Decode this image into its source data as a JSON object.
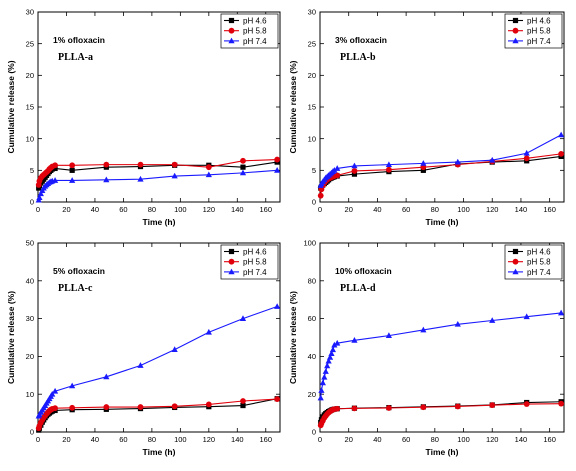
{
  "chart_data": [
    {
      "type": "line",
      "annotation": "1% ofloxacin",
      "sample_label": "PLLA-a",
      "xlabel": "Time (h)",
      "ylabel": "Cumulative release (%)",
      "xlim": [
        0,
        170
      ],
      "ylim": [
        0,
        30
      ],
      "xticks": [
        0,
        20,
        40,
        60,
        80,
        100,
        120,
        140,
        160
      ],
      "yticks": [
        0,
        5,
        10,
        15,
        20,
        25,
        30
      ],
      "legend_position": "top-right",
      "series": [
        {
          "name": "pH 4.6",
          "color": "#000000",
          "marker": "square",
          "x": [
            0.5,
            1,
            2,
            3,
            4,
            5,
            6,
            7,
            8,
            9,
            10,
            12,
            24,
            48,
            72,
            96,
            120,
            144,
            168
          ],
          "y": [
            2.2,
            2.6,
            3.0,
            3.3,
            3.6,
            3.9,
            4.2,
            4.5,
            4.8,
            5.0,
            5.2,
            5.3,
            5.0,
            5.5,
            5.6,
            5.8,
            5.8,
            5.5,
            6.3
          ]
        },
        {
          "name": "pH 5.8",
          "color": "#e0000b",
          "marker": "circle",
          "x": [
            0.5,
            1,
            2,
            3,
            4,
            5,
            6,
            7,
            8,
            9,
            10,
            12,
            24,
            48,
            72,
            96,
            120,
            144,
            168
          ],
          "y": [
            2.7,
            3.3,
            3.8,
            4.1,
            4.3,
            4.5,
            4.7,
            4.9,
            5.2,
            5.4,
            5.6,
            5.8,
            5.8,
            5.9,
            5.9,
            5.9,
            5.5,
            6.5,
            6.7
          ]
        },
        {
          "name": "pH 7.4",
          "color": "#1a1aff",
          "marker": "triangle",
          "x": [
            0.5,
            1,
            2,
            3,
            4,
            5,
            6,
            7,
            8,
            9,
            10,
            12,
            24,
            48,
            72,
            96,
            120,
            144,
            168
          ],
          "y": [
            0.3,
            0.7,
            1.3,
            1.8,
            2.2,
            2.5,
            2.7,
            2.9,
            3.1,
            3.2,
            3.3,
            3.4,
            3.4,
            3.5,
            3.6,
            4.1,
            4.3,
            4.6,
            5.0
          ]
        }
      ]
    },
    {
      "type": "line",
      "annotation": "3% ofloxacin",
      "sample_label": "PLLA-b",
      "xlabel": "Time (h)",
      "ylabel": "Cumulative release (%)",
      "xlim": [
        0,
        170
      ],
      "ylim": [
        0,
        30
      ],
      "xticks": [
        0,
        20,
        40,
        60,
        80,
        100,
        120,
        140,
        160
      ],
      "yticks": [
        0,
        5,
        10,
        15,
        20,
        25,
        30
      ],
      "legend_position": "top-right",
      "series": [
        {
          "name": "pH 4.6",
          "color": "#000000",
          "marker": "square",
          "x": [
            0.5,
            1,
            2,
            3,
            4,
            5,
            6,
            7,
            8,
            9,
            10,
            12,
            24,
            48,
            72,
            96,
            120,
            144,
            168
          ],
          "y": [
            2.2,
            2.4,
            2.7,
            2.9,
            3.1,
            3.3,
            3.5,
            3.7,
            3.8,
            3.9,
            4.0,
            4.1,
            4.4,
            4.8,
            5.0,
            6.0,
            6.3,
            6.5,
            7.2
          ]
        },
        {
          "name": "pH 5.8",
          "color": "#e0000b",
          "marker": "circle",
          "x": [
            0.5,
            1,
            2,
            3,
            4,
            5,
            6,
            7,
            8,
            9,
            10,
            12,
            24,
            48,
            72,
            96,
            120,
            144,
            168
          ],
          "y": [
            1.0,
            2.0,
            2.6,
            3.0,
            3.3,
            3.5,
            3.7,
            3.8,
            3.9,
            4.0,
            4.1,
            4.2,
            4.9,
            5.1,
            5.5,
            5.9,
            6.4,
            6.9,
            7.6
          ]
        },
        {
          "name": "pH 7.4",
          "color": "#1a1aff",
          "marker": "triangle",
          "x": [
            0.5,
            1,
            2,
            3,
            4,
            5,
            6,
            7,
            8,
            9,
            10,
            12,
            24,
            48,
            72,
            96,
            120,
            144,
            168
          ],
          "y": [
            2.6,
            2.9,
            3.2,
            3.5,
            3.8,
            4.0,
            4.2,
            4.4,
            4.6,
            4.8,
            5.0,
            5.3,
            5.7,
            5.9,
            6.1,
            6.3,
            6.6,
            7.7,
            10.6
          ]
        }
      ]
    },
    {
      "type": "line",
      "annotation": "5% ofloxacin",
      "sample_label": "PLLA-c",
      "xlabel": "Time (h)",
      "ylabel": "Cumulative release (%)",
      "xlim": [
        0,
        170
      ],
      "ylim": [
        0,
        50
      ],
      "xticks": [
        0,
        20,
        40,
        60,
        80,
        100,
        120,
        140,
        160
      ],
      "yticks": [
        0,
        10,
        20,
        30,
        40,
        50
      ],
      "legend_position": "top-right",
      "series": [
        {
          "name": "pH 4.6",
          "color": "#000000",
          "marker": "square",
          "x": [
            0.5,
            1,
            2,
            3,
            4,
            5,
            6,
            7,
            8,
            9,
            10,
            12,
            24,
            48,
            72,
            96,
            120,
            144,
            168
          ],
          "y": [
            0.5,
            1.0,
            1.8,
            2.6,
            3.2,
            3.8,
            4.3,
            4.7,
            5.0,
            5.3,
            5.5,
            5.7,
            5.9,
            6.0,
            6.2,
            6.5,
            6.7,
            7.0,
            8.8
          ]
        },
        {
          "name": "pH 5.8",
          "color": "#e0000b",
          "marker": "circle",
          "x": [
            0.5,
            1,
            2,
            3,
            4,
            5,
            6,
            7,
            8,
            9,
            10,
            12,
            24,
            48,
            72,
            96,
            120,
            144,
            168
          ],
          "y": [
            1.0,
            1.6,
            2.5,
            3.2,
            3.8,
            4.3,
            4.8,
            5.2,
            5.6,
            5.9,
            6.1,
            6.3,
            6.4,
            6.6,
            6.6,
            6.8,
            7.3,
            8.2,
            8.7
          ]
        },
        {
          "name": "pH 7.4",
          "color": "#1a1aff",
          "marker": "triangle",
          "x": [
            0.5,
            1,
            2,
            3,
            4,
            5,
            6,
            7,
            8,
            9,
            10,
            12,
            24,
            48,
            72,
            96,
            120,
            144,
            168
          ],
          "y": [
            4.2,
            4.6,
            5.2,
            5.8,
            6.4,
            7.0,
            7.6,
            8.2,
            8.8,
            9.4,
            10.0,
            10.8,
            12.2,
            14.6,
            17.6,
            21.8,
            26.4,
            30.0,
            33.2
          ]
        }
      ]
    },
    {
      "type": "line",
      "annotation": "10% ofloxacin",
      "sample_label": "PLLA-d",
      "xlabel": "Time (h)",
      "ylabel": "Cumulative release (%)",
      "xlim": [
        0,
        170
      ],
      "ylim": [
        0,
        100
      ],
      "xticks": [
        0,
        20,
        40,
        60,
        80,
        100,
        120,
        140,
        160
      ],
      "yticks": [
        0,
        20,
        40,
        60,
        80,
        100
      ],
      "legend_position": "top-right",
      "series": [
        {
          "name": "pH 4.6",
          "color": "#000000",
          "marker": "square",
          "x": [
            0.5,
            1,
            2,
            3,
            4,
            5,
            6,
            7,
            8,
            9,
            10,
            12,
            24,
            48,
            72,
            96,
            120,
            144,
            168
          ],
          "y": [
            5.0,
            6.5,
            8.0,
            9.0,
            9.7,
            10.3,
            10.8,
            11.2,
            11.6,
            11.9,
            12.1,
            12.3,
            12.6,
            12.9,
            13.3,
            13.7,
            14.3,
            15.6,
            16.0
          ]
        },
        {
          "name": "pH 5.8",
          "color": "#e0000b",
          "marker": "circle",
          "x": [
            0.5,
            1,
            2,
            3,
            4,
            5,
            6,
            7,
            8,
            9,
            10,
            12,
            24,
            48,
            72,
            96,
            120,
            144,
            168
          ],
          "y": [
            3.5,
            4.5,
            6.0,
            7.5,
            8.5,
            9.5,
            10.3,
            10.9,
            11.4,
            11.8,
            12.1,
            12.3,
            12.5,
            12.7,
            13.1,
            13.5,
            14.2,
            14.8,
            15.0
          ]
        },
        {
          "name": "pH 7.4",
          "color": "#1a1aff",
          "marker": "triangle",
          "x": [
            0.5,
            1,
            2,
            3,
            4,
            5,
            6,
            7,
            8,
            9,
            10,
            12,
            24,
            48,
            72,
            96,
            120,
            144,
            168
          ],
          "y": [
            18.0,
            22.0,
            26.0,
            29.0,
            32.0,
            35.0,
            37.5,
            39.5,
            41.5,
            43.5,
            46.0,
            47.0,
            48.5,
            51.0,
            54.0,
            57.0,
            59.0,
            61.0,
            63.0
          ]
        }
      ]
    }
  ]
}
